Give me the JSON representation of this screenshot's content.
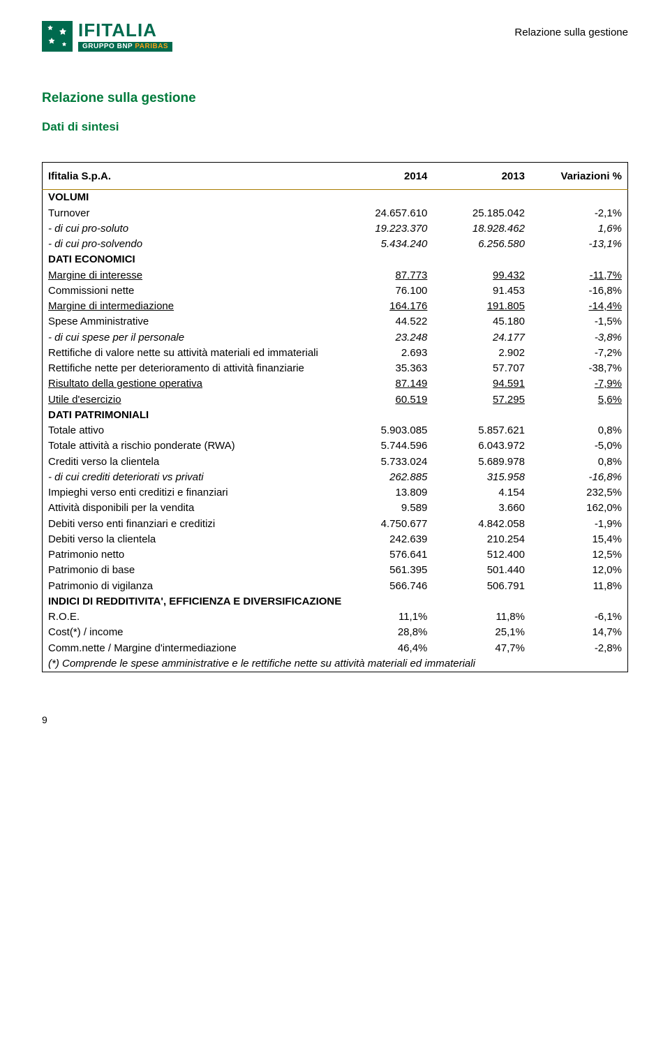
{
  "logo": {
    "main": "IFITALIA",
    "sub_prefix": "GRUPPO BNP ",
    "sub_colored": "PARIBAS"
  },
  "top_right": "Relazione sulla gestione",
  "heading": "Relazione sulla gestione",
  "subheading": "Dati di sintesi",
  "table": {
    "company": "Ifitalia S.p.A.",
    "cols": [
      "2014",
      "2013",
      "Variazioni %"
    ],
    "sections": [
      {
        "title": "VOLUMI",
        "rows": [
          {
            "label": "Turnover",
            "v": [
              "24.657.610",
              "25.185.042",
              "-2,1%"
            ]
          },
          {
            "label": "- di cui pro-soluto",
            "italic": true,
            "v": [
              "19.223.370",
              "18.928.462",
              "1,6%"
            ]
          },
          {
            "label": "- di cui pro-solvendo",
            "italic": true,
            "v": [
              "5.434.240",
              "6.256.580",
              "-13,1%"
            ]
          }
        ]
      },
      {
        "title": "DATI ECONOMICI",
        "rows": [
          {
            "label": "Margine di interesse",
            "underline": true,
            "v": [
              "87.773",
              "99.432",
              "-11,7%"
            ]
          },
          {
            "label": "Commissioni nette",
            "v": [
              "76.100",
              "91.453",
              "-16,8%"
            ]
          },
          {
            "label": "Margine di intermediazione",
            "underline": true,
            "v": [
              "164.176",
              "191.805",
              "-14,4%"
            ]
          },
          {
            "label": "Spese Amministrative",
            "v": [
              "44.522",
              "45.180",
              "-1,5%"
            ]
          },
          {
            "label": "- di cui spese per il personale",
            "italic": true,
            "v": [
              "23.248",
              "24.177",
              "-3,8%"
            ]
          },
          {
            "label": "Rettifiche di valore nette su attività materiali ed immateriali",
            "v": [
              "2.693",
              "2.902",
              "-7,2%"
            ]
          },
          {
            "label": "Rettifiche nette per deterioramento di attività finanziarie",
            "v": [
              "35.363",
              "57.707",
              "-38,7%"
            ]
          },
          {
            "label": "Risultato della gestione operativa",
            "underline": true,
            "v": [
              "87.149",
              "94.591",
              "-7,9%"
            ]
          },
          {
            "label": "Utile d'esercizio",
            "underline": true,
            "v": [
              "60.519",
              "57.295",
              "5,6%"
            ]
          }
        ]
      },
      {
        "title": "DATI PATRIMONIALI",
        "rows": [
          {
            "label": "Totale attivo",
            "v": [
              "5.903.085",
              "5.857.621",
              "0,8%"
            ]
          },
          {
            "label": "Totale attività a rischio ponderate (RWA)",
            "v": [
              "5.744.596",
              "6.043.972",
              "-5,0%"
            ]
          },
          {
            "label": "Crediti verso la clientela",
            "v": [
              "5.733.024",
              "5.689.978",
              "0,8%"
            ]
          },
          {
            "label": "- di cui crediti deteriorati vs privati",
            "italic": true,
            "v": [
              "262.885",
              "315.958",
              "-16,8%"
            ]
          },
          {
            "label": "Impieghi verso enti creditizi e finanziari",
            "v": [
              "13.809",
              "4.154",
              "232,5%"
            ]
          },
          {
            "label": "Attività disponibili per la vendita",
            "v": [
              "9.589",
              "3.660",
              "162,0%"
            ]
          },
          {
            "label": "Debiti verso enti finanziari e creditizi",
            "v": [
              "4.750.677",
              "4.842.058",
              "-1,9%"
            ]
          },
          {
            "label": "Debiti verso la clientela",
            "v": [
              "242.639",
              "210.254",
              "15,4%"
            ]
          },
          {
            "label": "Patrimonio netto",
            "v": [
              "576.641",
              "512.400",
              "12,5%"
            ]
          },
          {
            "label": "Patrimonio di base",
            "v": [
              "561.395",
              "501.440",
              "12,0%"
            ]
          },
          {
            "label": "Patrimonio di vigilanza",
            "v": [
              "566.746",
              "506.791",
              "11,8%"
            ]
          }
        ]
      },
      {
        "title": "INDICI DI REDDITIVITA', EFFICIENZA E DIVERSIFICAZIONE",
        "large_gap": true,
        "rows": [
          {
            "label": "R.O.E.",
            "v": [
              "11,1%",
              "11,8%",
              "-6,1%"
            ]
          },
          {
            "label": "Cost(*) / income",
            "v": [
              "28,8%",
              "25,1%",
              "14,7%"
            ]
          },
          {
            "label": "Comm.nette  / Margine d'intermediazione",
            "v": [
              "46,4%",
              "47,7%",
              "-2,8%"
            ]
          }
        ]
      }
    ],
    "footnote": "(*) Comprende le spese amministrative e le rettifiche nette su attività materiali ed immateriali"
  },
  "page_number": "9"
}
